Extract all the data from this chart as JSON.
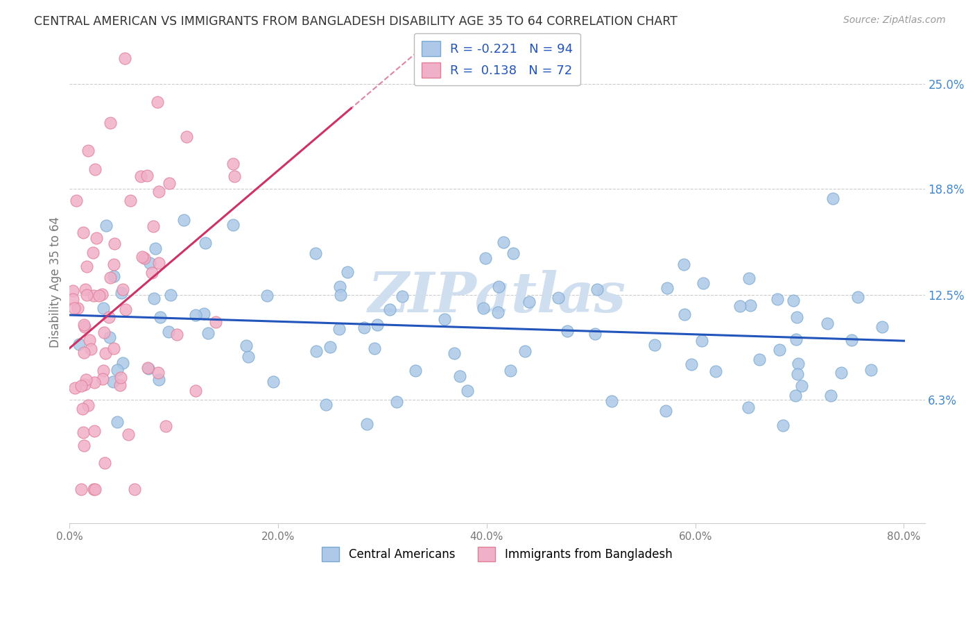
{
  "title": "CENTRAL AMERICAN VS IMMIGRANTS FROM BANGLADESH DISABILITY AGE 35 TO 64 CORRELATION CHART",
  "source": "Source: ZipAtlas.com",
  "ylabel": "Disability Age 35 to 64",
  "xlabel_ticks": [
    "0.0%",
    "20.0%",
    "40.0%",
    "60.0%",
    "80.0%"
  ],
  "xlabel_values": [
    0.0,
    0.2,
    0.4,
    0.6,
    0.8
  ],
  "ylabel_ticks": [
    "6.3%",
    "12.5%",
    "18.8%",
    "25.0%"
  ],
  "ylabel_values": [
    0.063,
    0.125,
    0.188,
    0.25
  ],
  "xlim": [
    0.0,
    0.82
  ],
  "ylim": [
    -0.01,
    0.275
  ],
  "blue_R": -0.221,
  "blue_N": 94,
  "pink_R": 0.138,
  "pink_N": 72,
  "blue_label": "Central Americans",
  "pink_label": "Immigrants from Bangladesh",
  "blue_color": "#adc8e8",
  "blue_edge": "#7aaad0",
  "pink_color": "#f0b0c8",
  "pink_edge": "#e08098",
  "blue_line_color": "#2255bb",
  "pink_line_color": "#cc3366",
  "watermark": "ZIPatlas",
  "watermark_color": "#d0dff0",
  "grid_color": "#cccccc",
  "title_color": "#333333",
  "source_color": "#999999",
  "ylabel_color": "#4488cc",
  "tick_color": "#777777"
}
